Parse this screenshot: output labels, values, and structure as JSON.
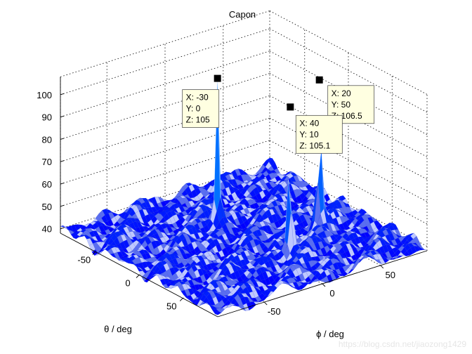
{
  "chart_data": {
    "type": "surface",
    "title": "Capon",
    "xlabel": "θ / deg",
    "ylabel": "ϕ / deg",
    "xlim": [
      -90,
      90
    ],
    "ylim": [
      -90,
      90
    ],
    "zlim": [
      38,
      108
    ],
    "xticks": [
      -50,
      0,
      50
    ],
    "yticks": [
      -50,
      0,
      50
    ],
    "zticks": [
      40,
      50,
      60,
      70,
      80,
      90,
      100
    ],
    "grid": true,
    "colormap": [
      "#0000ff",
      "#00ffff"
    ],
    "peaks": [
      {
        "x": -30,
        "y": 0,
        "z": 105
      },
      {
        "x": 20,
        "y": 50,
        "z": 106.5
      },
      {
        "x": 40,
        "y": 10,
        "z": 105.1
      }
    ],
    "datatips": [
      {
        "lines": [
          "X: -30",
          "Y: 0",
          "Z: 105"
        ]
      },
      {
        "lines": [
          "X: 20",
          "Y: 50",
          "Z: 106.5"
        ]
      },
      {
        "lines": [
          "X: 40",
          "Y: 10",
          "Z: 105.1"
        ]
      }
    ]
  },
  "watermark": "https://blog.csdn.net/jiaozong1429"
}
